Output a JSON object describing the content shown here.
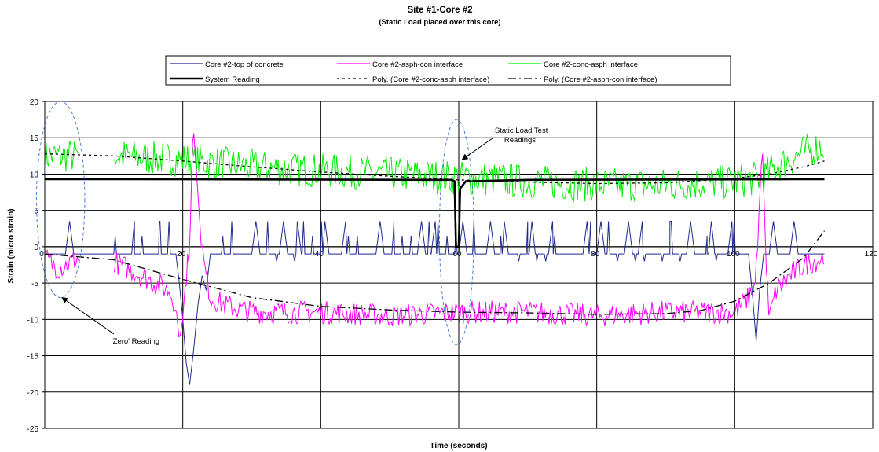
{
  "chart_data": {
    "type": "line",
    "title": "Site #1-Core #2",
    "subtitle": "(Static Load placed over this core)",
    "xlabel": "Time (seconds)",
    "ylabel": "Strain (micro strain)",
    "xlim": [
      0,
      120
    ],
    "ylim": [
      -25,
      20
    ],
    "xticks": [
      0,
      20,
      40,
      60,
      80,
      100,
      120
    ],
    "yticks": [
      -25,
      -20,
      -15,
      -10,
      -5,
      0,
      5,
      10,
      15,
      20
    ],
    "grid": true,
    "legend_position": "top",
    "legend": [
      "Core #2-top of concrete",
      "Core #2-asph-con interface",
      "Core #2-conc-asph interface",
      "System Reading",
      "Poly. (Core #2-conc-asph interface)",
      "Poly. (Core #2-asph-con interface)"
    ],
    "series": [
      {
        "name": "Core #2-top of concrete",
        "color": "#1f2a8c",
        "baseline": -1,
        "points": [
          [
            0,
            -1
          ],
          [
            3,
            -1
          ],
          [
            3.6,
            3.5
          ],
          [
            4.2,
            -1
          ],
          [
            12,
            -1
          ],
          [
            13,
            3.5
          ],
          [
            13.6,
            -1
          ],
          [
            16,
            -1
          ],
          [
            16.6,
            3.5
          ],
          [
            17.2,
            -1
          ],
          [
            19,
            -1
          ],
          [
            19.5,
            -5
          ],
          [
            20,
            -10
          ],
          [
            20.5,
            -16
          ],
          [
            21,
            -19
          ],
          [
            21.6,
            -14
          ],
          [
            22.2,
            -8
          ],
          [
            22.8,
            -4
          ],
          [
            23.4,
            -6
          ],
          [
            24,
            -1
          ],
          [
            30,
            -1
          ],
          [
            30.6,
            3.5
          ],
          [
            31.2,
            -1
          ],
          [
            34,
            -1
          ],
          [
            34.6,
            3.5
          ],
          [
            35.2,
            -1
          ],
          [
            36,
            -1
          ],
          [
            36.6,
            3.5
          ],
          [
            37.2,
            -1
          ],
          [
            40,
            -1
          ],
          [
            40.6,
            3.5
          ],
          [
            41.2,
            -1
          ],
          [
            43,
            -1
          ],
          [
            43.6,
            3.5
          ],
          [
            44.2,
            -1
          ],
          [
            48,
            -1
          ],
          [
            48.6,
            3.5
          ],
          [
            49.2,
            -1
          ],
          [
            50,
            -1
          ],
          [
            50.6,
            3.5
          ],
          [
            51.2,
            -1
          ],
          [
            54,
            -1
          ],
          [
            54.6,
            3.5
          ],
          [
            55.2,
            -1
          ],
          [
            56,
            -1
          ],
          [
            56.6,
            3.5
          ],
          [
            57.2,
            -1
          ],
          [
            60,
            -1
          ],
          [
            60.6,
            3.5
          ],
          [
            61.2,
            -1
          ],
          [
            64,
            -1
          ],
          [
            64.6,
            3.5
          ],
          [
            65.2,
            -1
          ],
          [
            66,
            -1
          ],
          [
            66.6,
            3.5
          ],
          [
            67.2,
            -1
          ],
          [
            70,
            -1
          ],
          [
            70.6,
            3.5
          ],
          [
            71.2,
            -1
          ],
          [
            73,
            -1
          ],
          [
            73.6,
            3.5
          ],
          [
            74.2,
            -1
          ],
          [
            78,
            -1
          ],
          [
            78.6,
            3.5
          ],
          [
            79.2,
            -1
          ],
          [
            80,
            -1
          ],
          [
            80.6,
            3.5
          ],
          [
            81.2,
            -1
          ],
          [
            84,
            -1
          ],
          [
            84.6,
            3.5
          ],
          [
            85.2,
            -1
          ],
          [
            86,
            -1
          ],
          [
            86.6,
            3.5
          ],
          [
            87.2,
            -1
          ],
          [
            90,
            -1
          ],
          [
            90.6,
            3.5
          ],
          [
            91.2,
            -1
          ],
          [
            93,
            -1
          ],
          [
            93.6,
            3.5
          ],
          [
            94.2,
            -1
          ],
          [
            96,
            -1
          ],
          [
            96.6,
            3.5
          ],
          [
            97.2,
            -1
          ],
          [
            99,
            -1
          ],
          [
            99.6,
            3.5
          ],
          [
            100.2,
            -1
          ],
          [
            102,
            -1
          ],
          [
            102.6,
            -7
          ],
          [
            103.1,
            -13
          ],
          [
            103.6,
            -6
          ],
          [
            104.2,
            -1
          ],
          [
            105,
            -1
          ],
          [
            105.6,
            3.5
          ],
          [
            106.2,
            -1
          ],
          [
            108,
            -1
          ],
          [
            108.6,
            3.5
          ],
          [
            109.2,
            -1
          ],
          [
            113,
            -1
          ]
        ],
        "gaps": [
          [
            5,
            10
          ]
        ],
        "spikes": {
          "from": 10,
          "to": 102,
          "step": 1.3,
          "height": 3.5
        }
      },
      {
        "name": "Core #2-asph-con interface",
        "color": "#ff00ff",
        "points": [
          [
            0,
            -1.5
          ],
          [
            2,
            -3
          ],
          [
            4,
            -2
          ],
          [
            5,
            -1.5
          ],
          [
            10,
            -2
          ],
          [
            12,
            -3
          ],
          [
            14,
            -4
          ],
          [
            16,
            -5
          ],
          [
            18,
            -6
          ],
          [
            19,
            -8
          ],
          [
            19.5,
            -13
          ],
          [
            20,
            -10
          ],
          [
            20.5,
            -4
          ],
          [
            21,
            0
          ],
          [
            21.5,
            17
          ],
          [
            22,
            10
          ],
          [
            22.5,
            3
          ],
          [
            23,
            -2
          ],
          [
            24,
            -7
          ],
          [
            26,
            -8
          ],
          [
            30,
            -9
          ],
          [
            40,
            -9
          ],
          [
            50,
            -9.5
          ],
          [
            60,
            -9
          ],
          [
            70,
            -9
          ],
          [
            80,
            -9.5
          ],
          [
            90,
            -9
          ],
          [
            100,
            -9
          ],
          [
            102,
            -7
          ],
          [
            103,
            -5
          ],
          [
            104,
            14
          ],
          [
            104.6,
            -4
          ],
          [
            105,
            -10
          ],
          [
            106,
            -6
          ],
          [
            108,
            -4
          ],
          [
            110,
            -2.5
          ],
          [
            113,
            -1.5
          ]
        ],
        "gaps": [
          [
            5,
            10
          ]
        ],
        "noise": 1.6
      },
      {
        "name": "Core #2-conc-asph interface",
        "color": "#00ee00",
        "points": [
          [
            0,
            12.5
          ],
          [
            5,
            12.5
          ],
          [
            10,
            12.5
          ],
          [
            20,
            12
          ],
          [
            30,
            11
          ],
          [
            40,
            10.5
          ],
          [
            50,
            10
          ],
          [
            60,
            9.5
          ],
          [
            70,
            9
          ],
          [
            80,
            8.5
          ],
          [
            90,
            8.5
          ],
          [
            100,
            9
          ],
          [
            104,
            9.5
          ],
          [
            106,
            11
          ],
          [
            110,
            13
          ],
          [
            113,
            14
          ]
        ],
        "gaps": [
          [
            5,
            10
          ]
        ],
        "noise": 2.4
      },
      {
        "name": "System Reading",
        "color": "#000000",
        "points": [
          [
            0,
            9.3
          ],
          [
            5,
            9.3
          ],
          [
            10,
            9.3
          ],
          [
            59,
            9.2
          ],
          [
            59.4,
            9.0
          ],
          [
            59.6,
            0
          ],
          [
            60,
            0
          ],
          [
            60.2,
            8.0
          ],
          [
            61,
            9.0
          ],
          [
            70,
            9.2
          ],
          [
            113,
            9.3
          ]
        ],
        "gaps": [
          [
            5,
            10
          ]
        ]
      },
      {
        "name": "Poly. (Core #2-conc-asph interface)",
        "color": "#000000",
        "dash": "3,4",
        "points": [
          [
            0,
            12.8
          ],
          [
            10,
            12.5
          ],
          [
            20,
            11.8
          ],
          [
            30,
            11.0
          ],
          [
            40,
            10.3
          ],
          [
            50,
            9.7
          ],
          [
            60,
            9.2
          ],
          [
            70,
            8.9
          ],
          [
            80,
            8.7
          ],
          [
            90,
            8.8
          ],
          [
            100,
            9.4
          ],
          [
            105,
            10.0
          ],
          [
            110,
            11.0
          ],
          [
            113,
            11.8
          ]
        ]
      },
      {
        "name": "Poly. (Core #2-asph-con interface)",
        "color": "#000000",
        "dash": "10,4,2,4",
        "points": [
          [
            0,
            -1.0
          ],
          [
            10,
            -1.8
          ],
          [
            20,
            -4.5
          ],
          [
            30,
            -7.0
          ],
          [
            40,
            -8.2
          ],
          [
            50,
            -8.7
          ],
          [
            60,
            -9.0
          ],
          [
            70,
            -9.1
          ],
          [
            80,
            -9.3
          ],
          [
            90,
            -9.2
          ],
          [
            95,
            -8.8
          ],
          [
            100,
            -7.5
          ],
          [
            105,
            -5.0
          ],
          [
            110,
            -1.5
          ],
          [
            113,
            2.2
          ]
        ]
      }
    ],
    "annotations": [
      {
        "text": "'Zero' Reading",
        "ellipse": {
          "cx": 2.3,
          "cy": 6.5,
          "rx": 3.5,
          "ry": 13.5
        },
        "arrow_from": [
          10,
          -12
        ],
        "arrow_to": [
          2.5,
          -7
        ]
      },
      {
        "text": "Static Load Test",
        "text2": "Readings",
        "ellipse": {
          "cx": 59.7,
          "cy": 2,
          "rx": 2.5,
          "ry": 15.5
        },
        "arrow_from": [
          65,
          15
        ],
        "arrow_to": [
          60.5,
          12
        ]
      }
    ]
  }
}
